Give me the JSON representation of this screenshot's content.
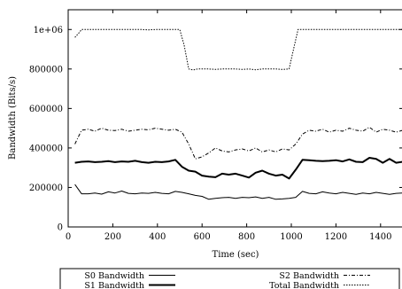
{
  "chart_data": {
    "type": "line",
    "xlabel": "Time (sec)",
    "ylabel": "Bandwidth (Bits/s)",
    "xlim": [
      0,
      1500
    ],
    "ylim": [
      0,
      1100000
    ],
    "xticks": [
      0,
      200,
      400,
      600,
      800,
      1000,
      1200,
      1400
    ],
    "yticks": [
      0,
      200000,
      400000,
      600000,
      800000,
      1000000
    ],
    "xtick_labels": [
      "0",
      "200",
      "400",
      "600",
      "800",
      "1000",
      "1200",
      "1400"
    ],
    "ytick_labels": [
      "0",
      "200000",
      "400000",
      "600000",
      "800000",
      "1e+06"
    ],
    "grid": false,
    "legend_position": "bottom",
    "series": [
      {
        "name": "S0 Bandwidth",
        "style": "solid-thin",
        "color": "#000000",
        "x": [
          30,
          60,
          90,
          120,
          150,
          180,
          210,
          240,
          270,
          300,
          330,
          360,
          390,
          420,
          450,
          480,
          510,
          540,
          570,
          600,
          630,
          660,
          690,
          720,
          750,
          780,
          810,
          840,
          870,
          900,
          930,
          960,
          990,
          1020,
          1050,
          1080,
          1110,
          1140,
          1170,
          1200,
          1230,
          1260,
          1290,
          1320,
          1350,
          1380,
          1410,
          1440,
          1470,
          1500
        ],
        "y": [
          215000,
          168000,
          168000,
          172000,
          166000,
          178000,
          172000,
          182000,
          170000,
          168000,
          172000,
          170000,
          175000,
          170000,
          168000,
          180000,
          175000,
          168000,
          160000,
          155000,
          140000,
          145000,
          148000,
          150000,
          145000,
          150000,
          148000,
          152000,
          145000,
          150000,
          140000,
          142000,
          145000,
          150000,
          180000,
          170000,
          168000,
          178000,
          172000,
          168000,
          175000,
          170000,
          165000,
          172000,
          168000,
          175000,
          170000,
          165000,
          170000,
          172000
        ]
      },
      {
        "name": "S1 Bandwidth",
        "style": "solid-thick",
        "color": "#000000",
        "x": [
          30,
          60,
          90,
          120,
          150,
          180,
          210,
          240,
          270,
          300,
          330,
          360,
          390,
          420,
          450,
          480,
          510,
          540,
          570,
          600,
          630,
          660,
          690,
          720,
          750,
          780,
          810,
          840,
          870,
          900,
          930,
          960,
          990,
          1020,
          1050,
          1080,
          1110,
          1140,
          1170,
          1200,
          1230,
          1260,
          1290,
          1320,
          1350,
          1380,
          1410,
          1440,
          1470,
          1500
        ],
        "y": [
          325000,
          330000,
          332000,
          328000,
          330000,
          333000,
          328000,
          332000,
          330000,
          335000,
          328000,
          325000,
          330000,
          328000,
          332000,
          340000,
          305000,
          285000,
          280000,
          260000,
          255000,
          252000,
          270000,
          265000,
          270000,
          260000,
          250000,
          275000,
          285000,
          270000,
          260000,
          265000,
          245000,
          290000,
          340000,
          338000,
          335000,
          333000,
          335000,
          338000,
          332000,
          342000,
          330000,
          328000,
          350000,
          345000,
          325000,
          345000,
          325000,
          330000
        ]
      },
      {
        "name": "S2 Bandwidth",
        "style": "dash-dot",
        "color": "#000000",
        "x": [
          30,
          60,
          90,
          120,
          150,
          180,
          210,
          240,
          270,
          300,
          330,
          360,
          390,
          420,
          450,
          480,
          510,
          540,
          570,
          600,
          630,
          660,
          690,
          720,
          750,
          780,
          810,
          840,
          870,
          900,
          930,
          960,
          990,
          1020,
          1050,
          1080,
          1110,
          1140,
          1170,
          1200,
          1230,
          1260,
          1290,
          1320,
          1350,
          1380,
          1410,
          1440,
          1470,
          1500
        ],
        "y": [
          420000,
          490000,
          495000,
          485000,
          500000,
          490000,
          488000,
          495000,
          485000,
          490000,
          495000,
          492000,
          500000,
          495000,
          490000,
          495000,
          480000,
          420000,
          345000,
          355000,
          375000,
          400000,
          385000,
          380000,
          390000,
          395000,
          385000,
          400000,
          380000,
          390000,
          380000,
          395000,
          390000,
          420000,
          470000,
          490000,
          485000,
          495000,
          480000,
          490000,
          485000,
          500000,
          490000,
          485000,
          505000,
          480000,
          495000,
          490000,
          480000,
          490000
        ]
      },
      {
        "name": "Total Bandwidth",
        "style": "dotted",
        "color": "#000000",
        "x": [
          30,
          50,
          60,
          90,
          120,
          150,
          180,
          210,
          240,
          270,
          300,
          330,
          360,
          390,
          420,
          450,
          480,
          500,
          520,
          540,
          560,
          580,
          600,
          630,
          660,
          690,
          720,
          750,
          780,
          810,
          840,
          870,
          900,
          930,
          960,
          990,
          1010,
          1030,
          1040,
          1060,
          1090,
          1120,
          1150,
          1180,
          1210,
          1240,
          1270,
          1300,
          1330,
          1360,
          1390,
          1420,
          1450,
          1480,
          1500
        ],
        "y": [
          960000,
          985000,
          1000000,
          1000000,
          1000000,
          1000000,
          1000000,
          1000000,
          1000000,
          1000000,
          1000000,
          1000000,
          998000,
          1000000,
          1000000,
          1000000,
          1000000,
          1000000,
          920000,
          800000,
          795000,
          800000,
          800000,
          800000,
          798000,
          800000,
          800000,
          800000,
          798000,
          800000,
          796000,
          800000,
          800000,
          800000,
          798000,
          800000,
          900000,
          1000000,
          1000000,
          1000000,
          1000000,
          1000000,
          1000000,
          1000000,
          1000000,
          1000000,
          1000000,
          1000000,
          1000000,
          1000000,
          1000000,
          1000000,
          1000000,
          1000000,
          1000000
        ]
      }
    ]
  }
}
